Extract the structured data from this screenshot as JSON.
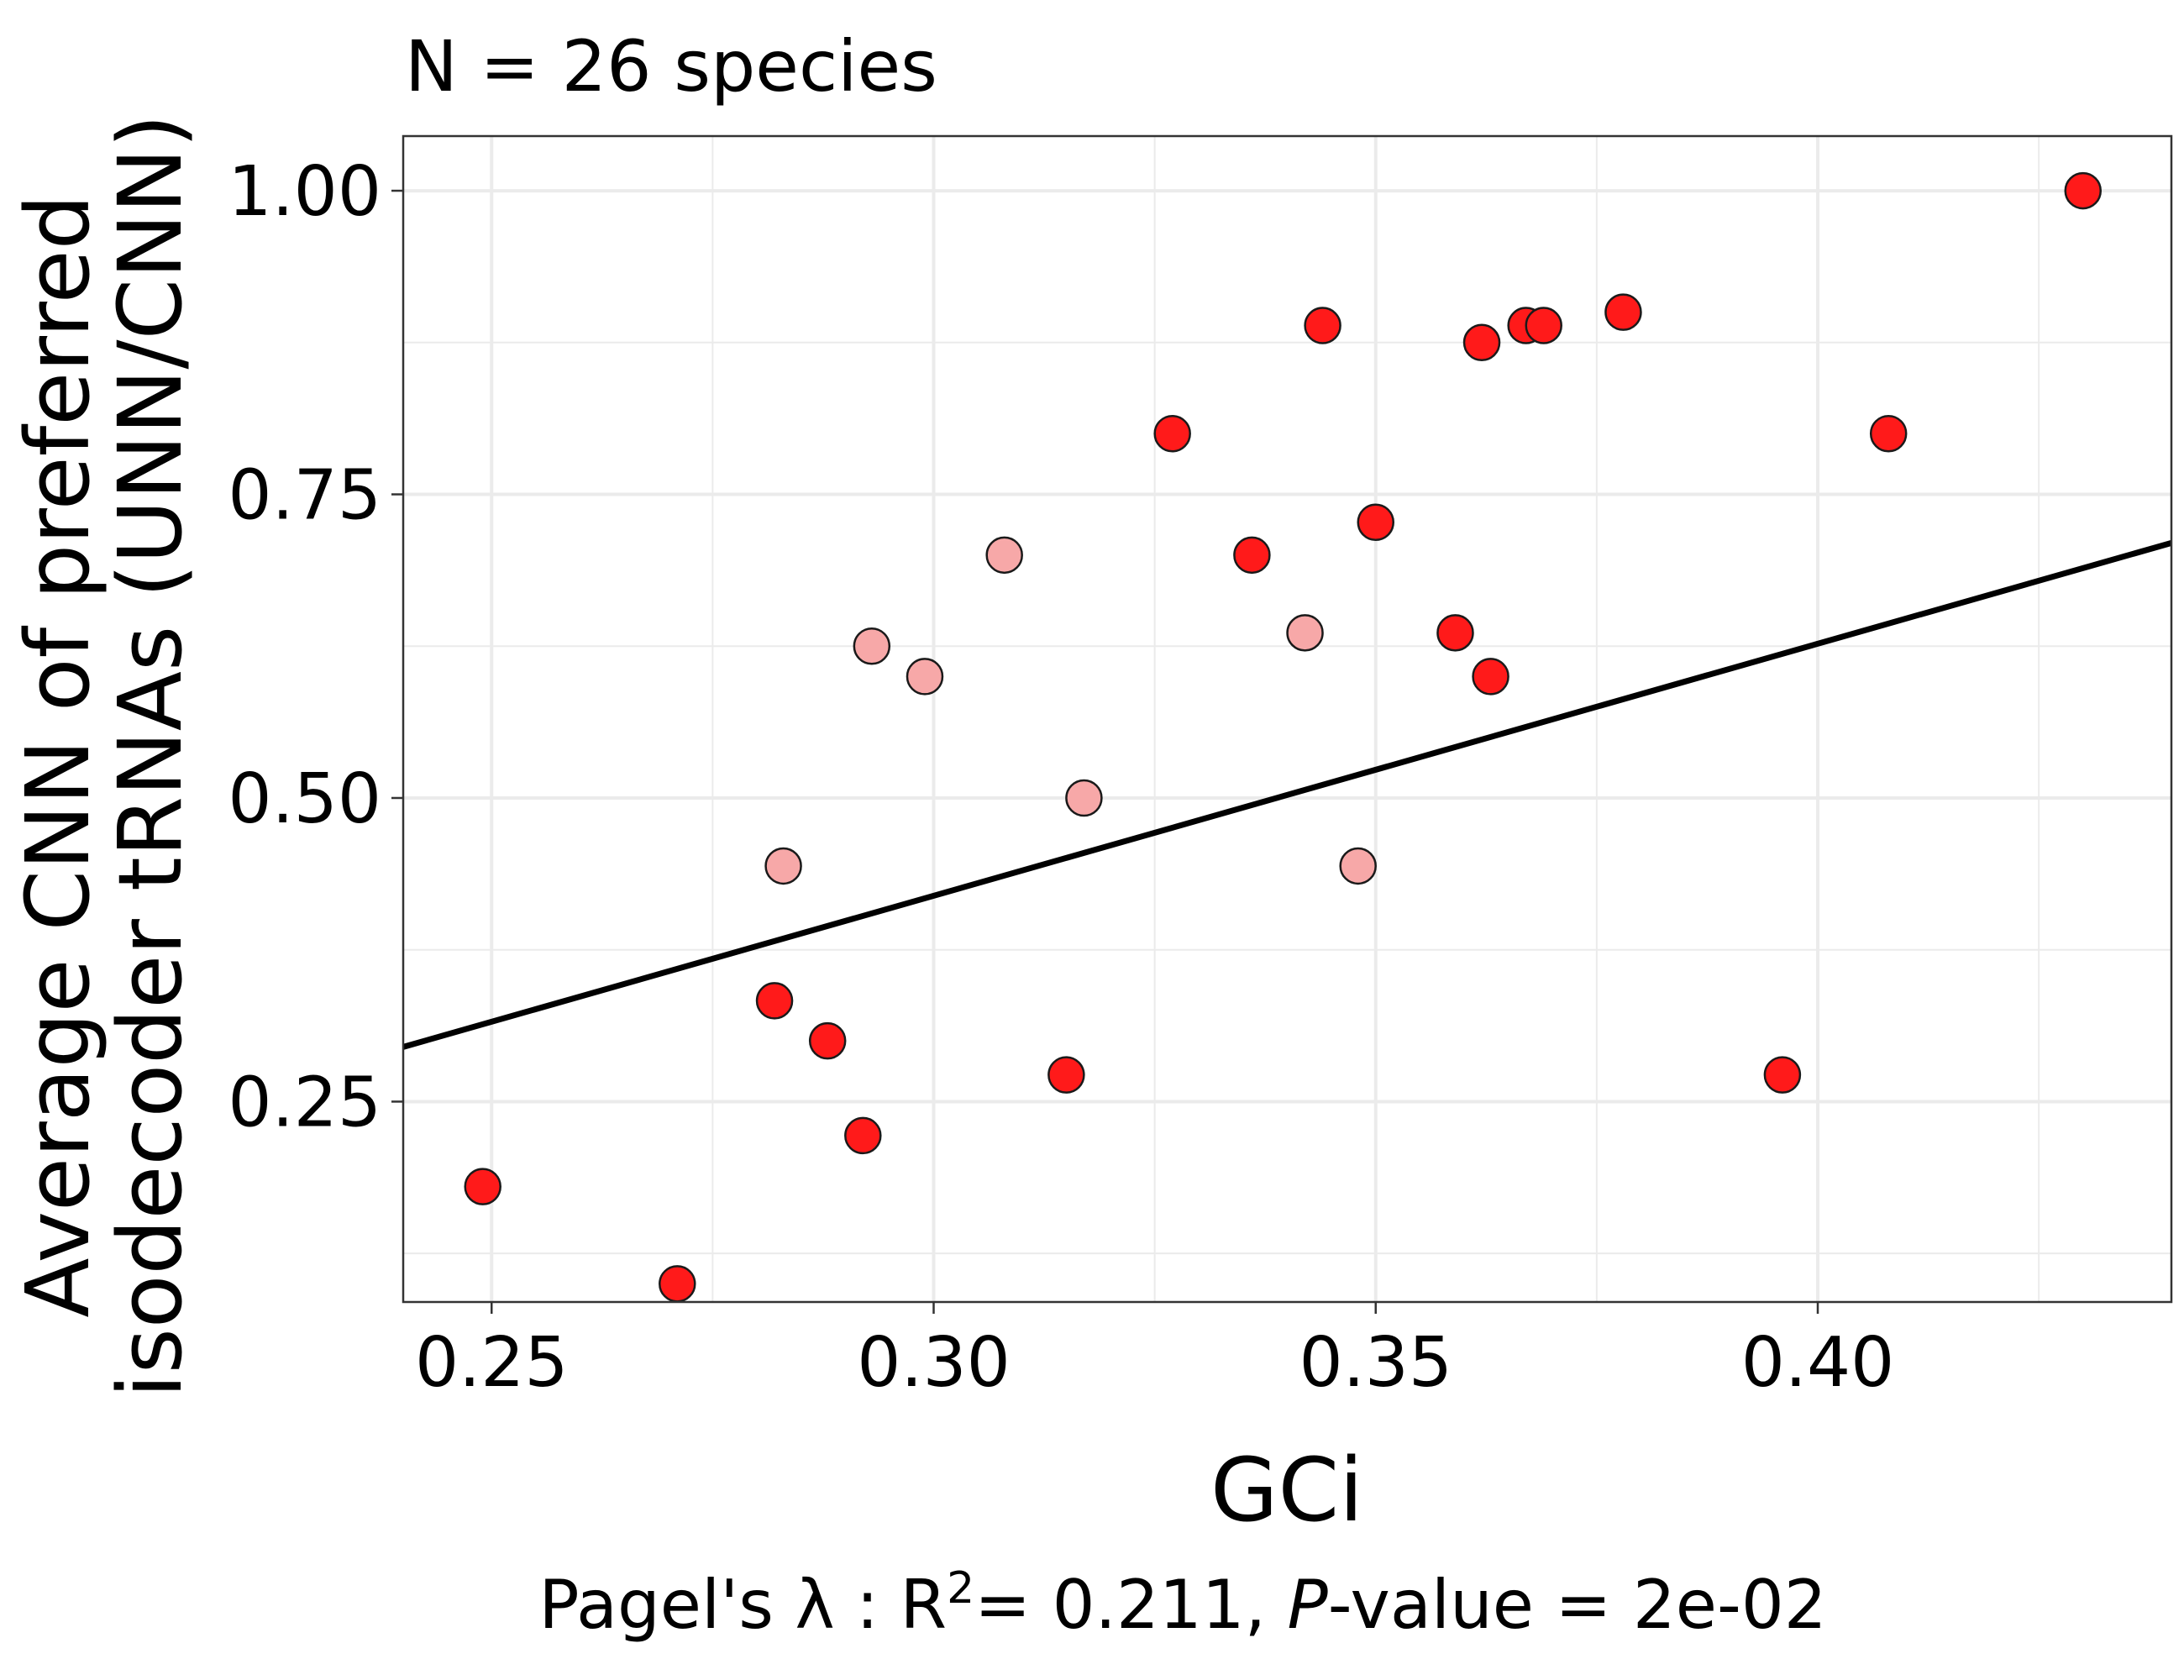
{
  "chart_data": {
    "type": "scatter",
    "title": "N = 26 species",
    "xlabel": "GCi",
    "ylabel_line1": "Average CNN of preferred",
    "ylabel_line2": "isodecoder tRNAs (UNN/CNN)",
    "caption": {
      "prefix": "Pagel's λ : R",
      "superscript": "2",
      "middle": "= 0.211, ",
      "italic": "P",
      "suffix": "-value = 2e-02"
    },
    "xlim": [
      0.24,
      0.44
    ],
    "ylim": [
      0.085,
      1.045
    ],
    "x_ticks": [
      0.25,
      0.3,
      0.35,
      0.4
    ],
    "x_tick_labels": [
      "0.25",
      "0.30",
      "0.35",
      "0.40"
    ],
    "y_ticks": [
      0.25,
      0.5,
      0.75,
      1.0
    ],
    "y_tick_labels": [
      "0.25",
      "0.50",
      "0.75",
      "1.00"
    ],
    "grid": true,
    "colors": {
      "significant": "#ff1a1a",
      "light": "#f7a8a8",
      "outline": "#1a1a1a",
      "grid": "#ebebeb",
      "line": "#000000"
    },
    "fit_line": {
      "x": [
        0.24,
        0.44
      ],
      "y": [
        0.295,
        0.71
      ]
    },
    "series": [
      {
        "color_key": "significant",
        "points": [
          [
            0.249,
            0.18
          ],
          [
            0.271,
            0.1
          ],
          [
            0.282,
            0.333
          ],
          [
            0.288,
            0.3
          ],
          [
            0.292,
            0.222
          ],
          [
            0.315,
            0.272
          ],
          [
            0.327,
            0.8
          ],
          [
            0.336,
            0.7
          ],
          [
            0.344,
            0.889
          ],
          [
            0.35,
            0.727
          ],
          [
            0.359,
            0.636
          ],
          [
            0.362,
            0.875
          ],
          [
            0.363,
            0.6
          ],
          [
            0.367,
            0.889
          ],
          [
            0.369,
            0.889
          ],
          [
            0.378,
            0.9
          ],
          [
            0.396,
            0.272
          ],
          [
            0.408,
            0.8
          ],
          [
            0.43,
            1.0
          ]
        ]
      },
      {
        "color_key": "light",
        "points": [
          [
            0.283,
            0.444
          ],
          [
            0.293,
            0.625
          ],
          [
            0.299,
            0.6
          ],
          [
            0.308,
            0.7
          ],
          [
            0.317,
            0.5
          ],
          [
            0.342,
            0.636
          ],
          [
            0.348,
            0.444
          ]
        ]
      }
    ]
  }
}
